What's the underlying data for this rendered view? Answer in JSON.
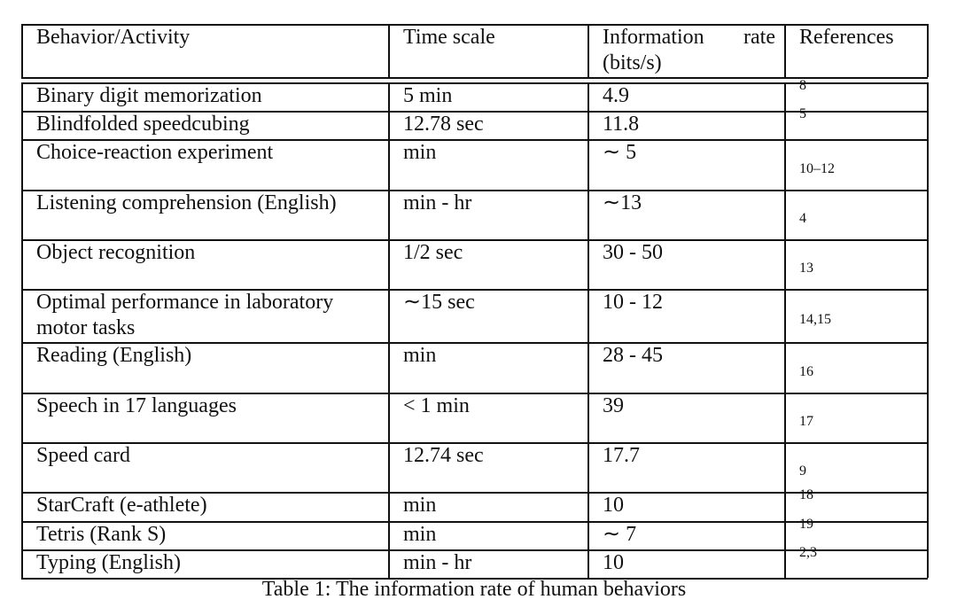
{
  "table": {
    "header": [
      "Behavior/Activity",
      "Time scale",
      "Information rate (bits/s)",
      "References"
    ],
    "rows": [
      [
        "Binary digit memorization",
        "5 min",
        "4.9",
        "8"
      ],
      [
        "Blindfolded speedcubing",
        "12.78 sec",
        "11.8",
        "5"
      ],
      [
        "Choice-reaction experiment",
        "min",
        "∼ 5",
        "10–12"
      ],
      [
        "Listening comprehension (English)",
        "min - hr",
        "∼13",
        "4"
      ],
      [
        "Object recognition",
        "1/2 sec",
        "30 - 50",
        "13"
      ],
      [
        "Optimal performance in laboratory motor tasks",
        "∼15 sec",
        "10 - 12",
        "14,15"
      ],
      [
        "Reading (English)",
        "min",
        "28 - 45",
        "16"
      ],
      [
        "Speech in 17 languages",
        "< 1 min",
        "39",
        "17"
      ],
      [
        "Speed card",
        "12.74 sec",
        "17.7",
        "9"
      ],
      [
        "StarCraft (e-athlete)",
        "min",
        "10",
        "18"
      ],
      [
        "Tetris (Rank S)",
        "min",
        "∼ 7",
        "19"
      ],
      [
        "Typing (English)",
        "min - hr",
        "10",
        "2,3"
      ]
    ],
    "caption": "Table 1: The information rate of human behaviors"
  }
}
